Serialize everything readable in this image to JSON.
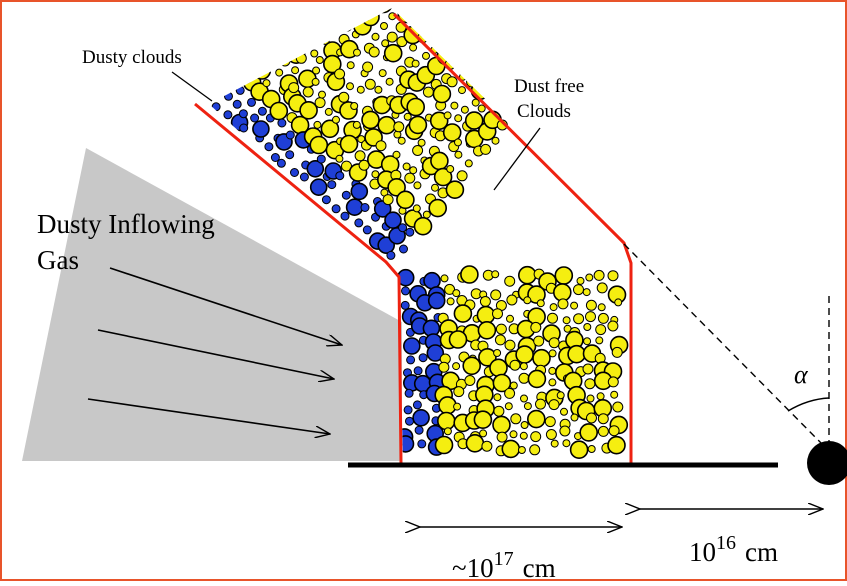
{
  "labels": {
    "dusty_clouds": "Dusty clouds",
    "dust_free_line1": "Dust free",
    "dust_free_line2": "Clouds",
    "inflow_line1": "Dusty Inflowing",
    "inflow_line2": "Gas",
    "angle": "α",
    "dim_left_prefix": "~10",
    "dim_left_exp": "17",
    "dim_left_unit": "cm",
    "dim_right_base": "10",
    "dim_right_exp": "16",
    "dim_right_unit": "cm"
  },
  "colors": {
    "border": "#e8542a",
    "cloud_wall": "#ee2211",
    "dusty_cloud": "#1f3fd6",
    "dust_free_cloud": "#f5ee10",
    "inflow_gas": "#c8c8c8",
    "ink": "#000000"
  }
}
